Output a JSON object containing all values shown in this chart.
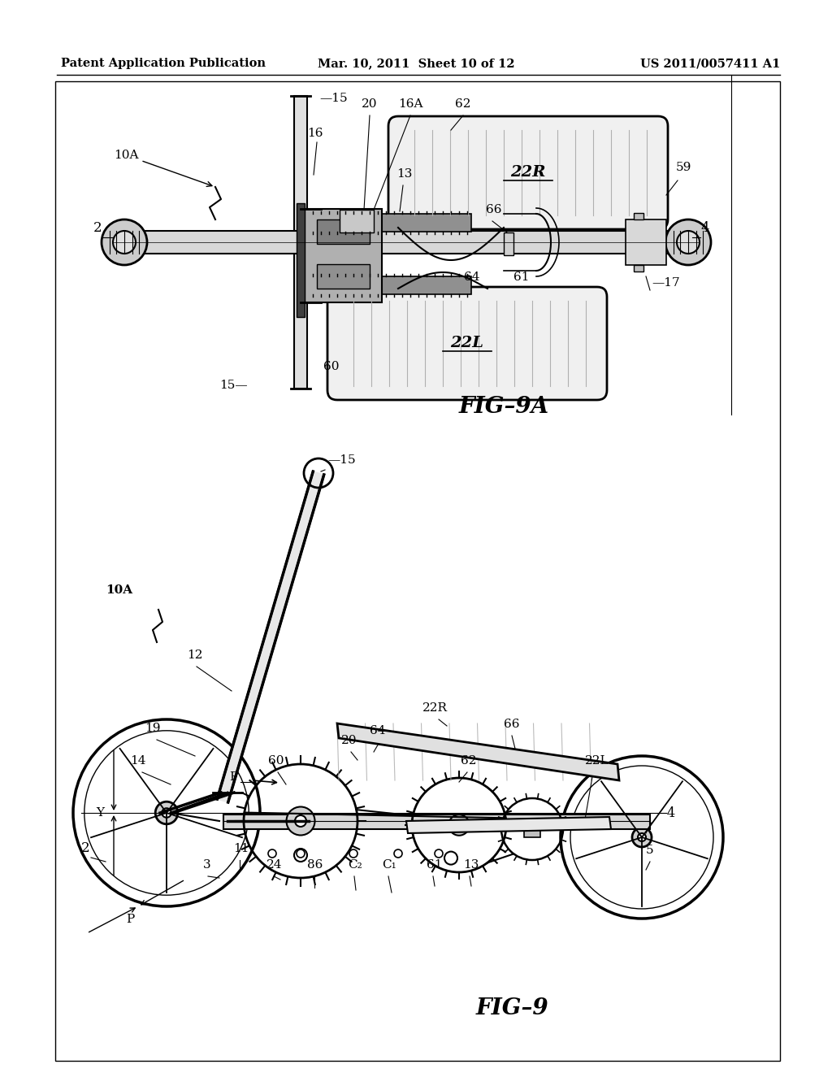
{
  "background_color": "#ffffff",
  "page_width": 10.24,
  "page_height": 13.2,
  "header": {
    "left": "Patent Application Publication",
    "center": "Mar. 10, 2011  Sheet 10 of 12",
    "right": "US 2011/0057411 A1",
    "fontsize": 10.5
  },
  "fig9a_label": "FIG–9A",
  "fig9_label": "FIG–9",
  "fig9a_label_fontsize": 20,
  "fig9_label_fontsize": 20
}
